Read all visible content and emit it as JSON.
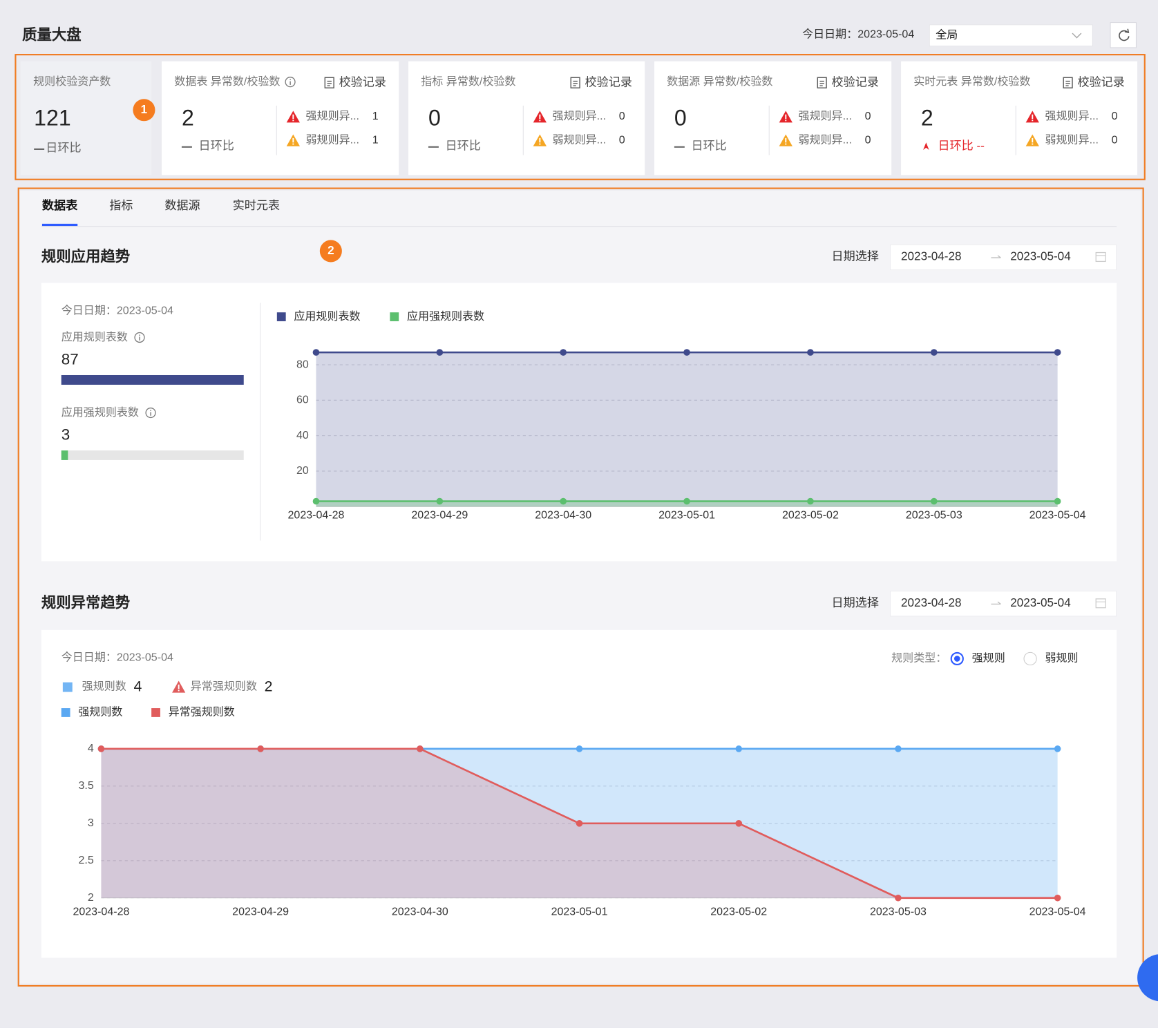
{
  "header": {
    "title": "质量大盘",
    "date_label": "今日日期：2023-05-04",
    "scope": "全局"
  },
  "annotations": [
    "1",
    "2"
  ],
  "cards": [
    {
      "title": "规则校验资产数",
      "value": 121,
      "compare": "日环比"
    },
    {
      "title": "数据表 异常数/校验数",
      "info": true,
      "link": "校验记录",
      "value": 2,
      "compare": "日环比",
      "rules": [
        {
          "label": "强规则异...",
          "count": 1,
          "color": "#e5262b"
        },
        {
          "label": "弱规则异...",
          "count": 1,
          "color": "#f5a623"
        }
      ]
    },
    {
      "title": "指标 异常数/校验数",
      "link": "校验记录",
      "value": 0,
      "compare": "日环比",
      "rules": [
        {
          "label": "强规则异...",
          "count": 0,
          "color": "#e5262b"
        },
        {
          "label": "弱规则异...",
          "count": 0,
          "color": "#f5a623"
        }
      ]
    },
    {
      "title": "数据源 异常数/校验数",
      "link": "校验记录",
      "value": 0,
      "compare": "日环比",
      "rules": [
        {
          "label": "强规则异...",
          "count": 0,
          "color": "#e5262b"
        },
        {
          "label": "弱规则异...",
          "count": 0,
          "color": "#f5a623"
        }
      ]
    },
    {
      "title": "实时元表 异常数/校验数",
      "link": "校验记录",
      "value": 2,
      "compare": "日环比 --",
      "trend": "up",
      "rules": [
        {
          "label": "强规则异...",
          "count": 0,
          "color": "#e5262b"
        },
        {
          "label": "弱规则异...",
          "count": 0,
          "color": "#f5a623"
        }
      ]
    }
  ],
  "tabs": [
    "数据表",
    "指标",
    "数据源",
    "实时元表"
  ],
  "active_tab": 0,
  "sections": [
    {
      "title": "规则应用趋势",
      "date_label": "日期选择",
      "start_date": "2023-04-28",
      "end_date": "2023-05-04",
      "today": "今日日期：2023-05-04",
      "stats": [
        {
          "label": "应用规则表数",
          "value": 87
        },
        {
          "label": "应用强规则表数",
          "value": 3
        }
      ]
    },
    {
      "title": "规则异常趋势",
      "date_label": "日期选择",
      "start_date": "2023-04-28",
      "end_date": "2023-05-04",
      "today": "今日日期：2023-05-04",
      "stats": [
        {
          "label": "强规则数",
          "value": 4
        },
        {
          "label": "异常强规则数",
          "value": 2
        }
      ],
      "rule_type": {
        "label": "规则类型：",
        "options": [
          "强规则",
          "弱规则"
        ],
        "selected": 0
      }
    }
  ],
  "chart_data": [
    {
      "type": "line",
      "area": true,
      "categories": [
        "2023-04-28",
        "2023-04-29",
        "2023-04-30",
        "2023-05-01",
        "2023-05-02",
        "2023-05-03",
        "2023-05-04"
      ],
      "series": [
        {
          "name": "应用规则表数",
          "color": "#3f4a8c",
          "values": [
            87,
            87,
            87,
            87,
            87,
            87,
            87
          ]
        },
        {
          "name": "应用强规则表数",
          "color": "#5cbf6e",
          "values": [
            3,
            3,
            3,
            3,
            3,
            3,
            3
          ]
        }
      ],
      "ylim": [
        0,
        90
      ],
      "yticks": [
        20,
        40,
        60,
        80
      ],
      "grid": true
    },
    {
      "type": "line",
      "area": true,
      "categories": [
        "2023-04-28",
        "2023-04-29",
        "2023-04-30",
        "2023-05-01",
        "2023-05-02",
        "2023-05-03",
        "2023-05-04"
      ],
      "series": [
        {
          "name": "强规则数",
          "color": "#5aa8f2",
          "values": [
            4,
            4,
            4,
            4,
            4,
            4,
            4
          ]
        },
        {
          "name": "异常强规则数",
          "color": "#e05c5c",
          "values": [
            4,
            4,
            4,
            3,
            3,
            2,
            2
          ]
        }
      ],
      "ylim": [
        2,
        4
      ],
      "yticks": [
        2,
        2.5,
        3,
        3.5,
        4
      ],
      "grid": true
    }
  ]
}
